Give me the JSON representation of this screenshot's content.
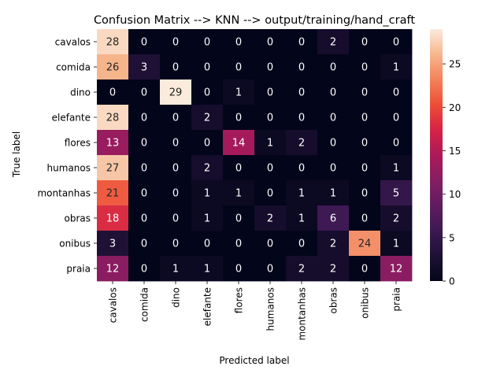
{
  "chart_data": {
    "type": "heatmap",
    "title": "Confusion Matrix --> KNN --> output/training/hand_craft",
    "xlabel": "Predicted label",
    "ylabel": "True label",
    "x_categories": [
      "cavalos",
      "comida",
      "dino",
      "elefante",
      "flores",
      "humanos",
      "montanhas",
      "obras",
      "onibus",
      "praia"
    ],
    "y_categories": [
      "cavalos",
      "comida",
      "dino",
      "elefante",
      "flores",
      "humanos",
      "montanhas",
      "obras",
      "onibus",
      "praia"
    ],
    "values": [
      [
        28,
        0,
        0,
        0,
        0,
        0,
        0,
        2,
        0,
        0
      ],
      [
        26,
        3,
        0,
        0,
        0,
        0,
        0,
        0,
        0,
        1
      ],
      [
        0,
        0,
        29,
        0,
        1,
        0,
        0,
        0,
        0,
        0
      ],
      [
        28,
        0,
        0,
        2,
        0,
        0,
        0,
        0,
        0,
        0
      ],
      [
        13,
        0,
        0,
        0,
        14,
        1,
        2,
        0,
        0,
        0
      ],
      [
        27,
        0,
        0,
        2,
        0,
        0,
        0,
        0,
        0,
        1
      ],
      [
        21,
        0,
        0,
        1,
        1,
        0,
        1,
        1,
        0,
        5
      ],
      [
        18,
        0,
        0,
        1,
        0,
        2,
        1,
        6,
        0,
        2
      ],
      [
        3,
        0,
        0,
        0,
        0,
        0,
        0,
        2,
        24,
        1
      ],
      [
        12,
        0,
        1,
        1,
        0,
        0,
        2,
        2,
        0,
        12
      ]
    ],
    "colorbar": {
      "range": [
        0,
        29
      ],
      "ticks": [
        0,
        5,
        10,
        15,
        20,
        25
      ]
    },
    "colormap": "rocket"
  }
}
